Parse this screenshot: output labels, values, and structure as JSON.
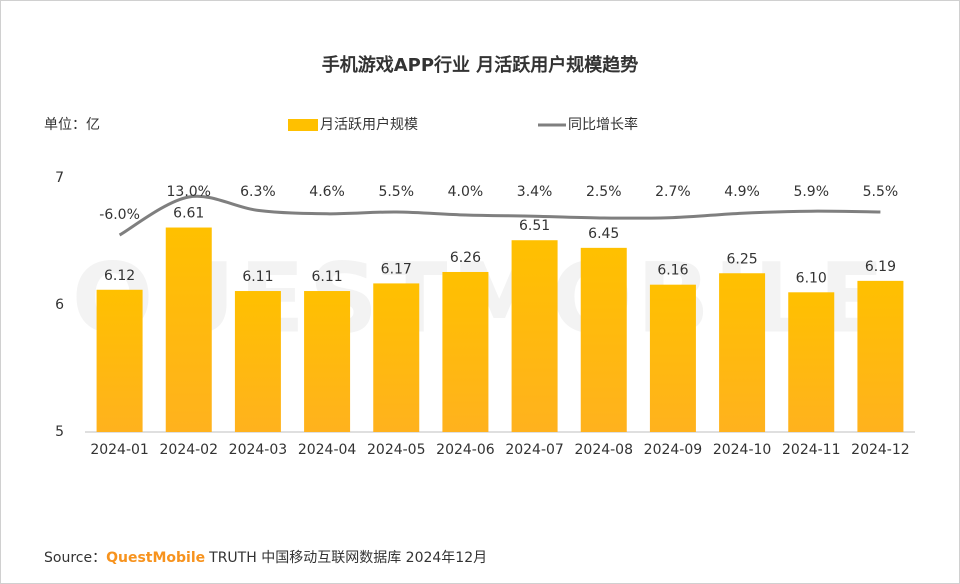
{
  "chart_data": {
    "type": "bar_line",
    "title": "手机游戏APP行业 月活跃用户规模趋势",
    "ylabel": "单位：亿",
    "watermark": "QUESTMOBILE",
    "categories": [
      "2024-01",
      "2024-02",
      "2024-03",
      "2024-04",
      "2024-05",
      "2024-06",
      "2024-07",
      "2024-08",
      "2024-09",
      "2024-10",
      "2024-11",
      "2024-12"
    ],
    "series": [
      {
        "name": "月活跃用户规模",
        "color": "#FFC000",
        "type": "bar",
        "values": [
          6.12,
          6.61,
          6.11,
          6.11,
          6.17,
          6.26,
          6.51,
          6.45,
          6.16,
          6.25,
          6.1,
          6.19
        ],
        "value_labels": [
          "6.12",
          "6.61",
          "6.11",
          "6.11",
          "6.17",
          "6.26",
          "6.51",
          "6.45",
          "6.16",
          "6.25",
          "6.10",
          "6.19"
        ]
      },
      {
        "name": "同比增长率",
        "color": "#7f7f7f",
        "type": "line",
        "axis": "y2",
        "values": [
          -6,
          13,
          6.3,
          4.6,
          5.5,
          4,
          3.4,
          2.5,
          2.7,
          4.9,
          5.9,
          5.5
        ],
        "value_labels": [
          "-6.0%",
          "13.0%",
          "6.3%",
          "4.6%",
          "5.5%",
          "4.0%",
          "3.4%",
          "2.5%",
          "2.7%",
          "4.9%",
          "5.9%",
          "5.5%"
        ]
      }
    ],
    "ylim": [
      5,
      7
    ],
    "yticks": [
      5,
      6,
      7
    ],
    "y2lim": [
      -104.5,
      22.5
    ],
    "grid": false,
    "source": {
      "prefix": "Source：",
      "brand": "QuestMobile",
      "rest": "TRUTH 中国移动互联网数据库 2024年12月"
    }
  }
}
